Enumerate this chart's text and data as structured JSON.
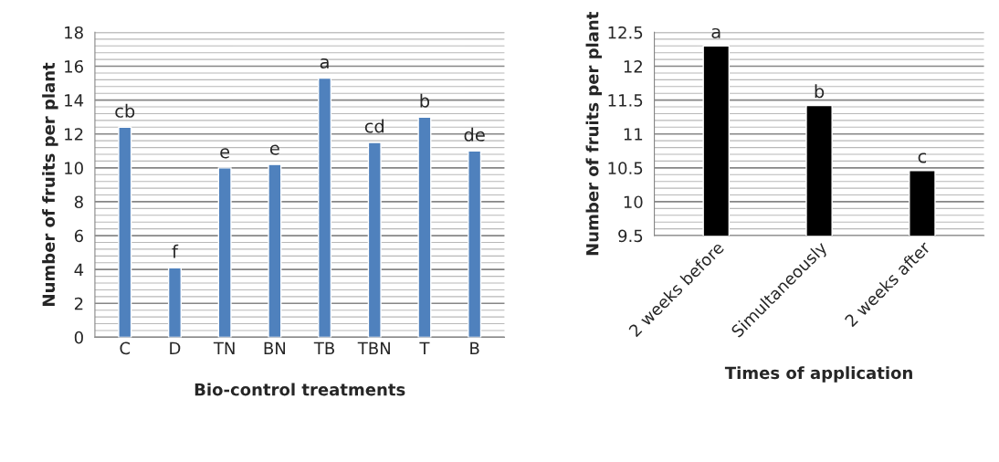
{
  "chart_data": [
    {
      "type": "bar",
      "xlabel": "Bio-control treatments",
      "ylabel": "Number of fruits per plant",
      "categories": [
        "C",
        "D",
        "TN",
        "BN",
        "TB",
        "TBN",
        "T",
        "B"
      ],
      "values": [
        12.4,
        4.1,
        10.0,
        10.2,
        15.3,
        11.5,
        13.0,
        11.0
      ],
      "color": "#4f81bd",
      "ylim": [
        0,
        18
      ],
      "yticks": [
        0,
        2,
        4,
        6,
        8,
        10,
        12,
        14,
        16,
        18
      ],
      "grid": "y",
      "legend": false,
      "annotations": [
        {
          "text": "cb",
          "x": "C",
          "y": 12.4
        },
        {
          "text": "f",
          "x": "D",
          "y": 4.1
        },
        {
          "text": "e",
          "x": "TN",
          "y": 10.0
        },
        {
          "text": "e",
          "x": "BN",
          "y": 10.2
        },
        {
          "text": "a",
          "x": "TB",
          "y": 15.3
        },
        {
          "text": "cd",
          "x": "TBN",
          "y": 11.5
        },
        {
          "text": "b",
          "x": "T",
          "y": 13.0
        },
        {
          "text": "de",
          "x": "B",
          "y": 11.0
        }
      ]
    },
    {
      "type": "bar",
      "xlabel": "Times of application",
      "ylabel": "Number of fruits per plant",
      "categories": [
        "2 weeks before",
        "Simultaneously",
        "2 weeks after"
      ],
      "values": [
        12.3,
        11.42,
        10.46
      ],
      "color": "#000000",
      "ylim": [
        9.5,
        12.5
      ],
      "yticks": [
        9.5,
        10,
        10.5,
        11,
        11.5,
        12,
        12.5
      ],
      "grid": "y",
      "legend": false,
      "annotations": [
        {
          "text": "a",
          "x": "2 weeks before",
          "y": 12.3
        },
        {
          "text": "b",
          "x": "Simultaneously",
          "y": 11.42
        },
        {
          "text": "c",
          "x": "2 weeks after",
          "y": 10.46
        }
      ]
    }
  ]
}
